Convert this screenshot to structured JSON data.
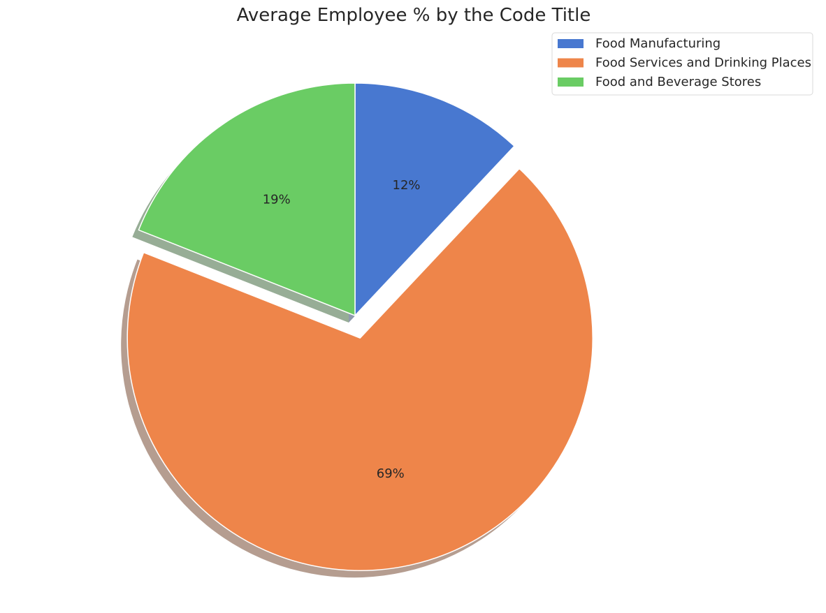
{
  "chart_data": {
    "type": "pie",
    "title": "Average Employee % by the Code Title",
    "slices": [
      {
        "label": "Food Manufacturing",
        "value": 12,
        "pct_label": "12%",
        "color": "#4878d0",
        "exploded": false
      },
      {
        "label": "Food Services and Drinking Places",
        "value": 69,
        "pct_label": "69%",
        "color": "#ee854a",
        "exploded": true
      },
      {
        "label": "Food and Beverage Stores",
        "value": 19,
        "pct_label": "19%",
        "color": "#6acc64",
        "exploded": false
      }
    ],
    "start_angle_deg": 90,
    "counterclock": false,
    "shadow": true,
    "legend_placement": "top-right"
  }
}
